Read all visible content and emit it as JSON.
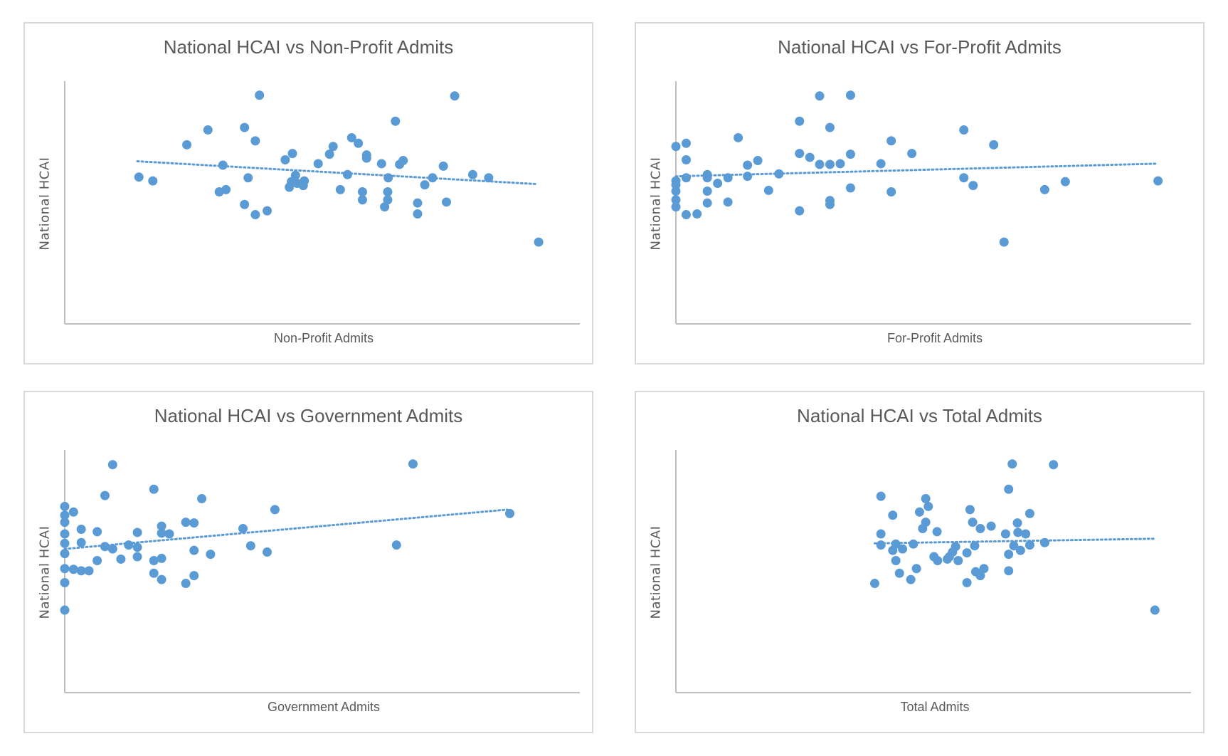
{
  "page": {
    "background": "#ffffff"
  },
  "colors": {
    "marker": "#5b9bd5",
    "trendline": "#5b9bd5",
    "axis": "#bfbfbf",
    "border": "#d9d9d9",
    "text": "#595959"
  },
  "chart_data": [
    {
      "type": "scatter",
      "title": "National HCAI vs Non-Profit Admits",
      "xlabel": "Non-Profit Admits",
      "ylabel": "National HCAI",
      "xlim": [
        0,
        100
      ],
      "ylim": [
        0,
        100
      ],
      "grid": false,
      "legend": "none",
      "note": "No tick labels shown; values in relative axis units (0-100)",
      "points": [
        [
          14.4,
          60.5
        ],
        [
          17.1,
          58.9
        ],
        [
          23.7,
          73.8
        ],
        [
          27.8,
          79.9
        ],
        [
          30.7,
          65.4
        ],
        [
          30.0,
          54.4
        ],
        [
          31.3,
          55.3
        ],
        [
          34.9,
          80.9
        ],
        [
          37.0,
          75.4
        ],
        [
          35.6,
          60.2
        ],
        [
          34.9,
          49.2
        ],
        [
          37.0,
          45.0
        ],
        [
          39.3,
          46.6
        ],
        [
          37.8,
          94.2
        ],
        [
          42.8,
          67.6
        ],
        [
          44.2,
          70.2
        ],
        [
          44.8,
          61.2
        ],
        [
          44.0,
          58.6
        ],
        [
          43.6,
          56.3
        ],
        [
          46.5,
          58.9
        ],
        [
          46.3,
          57.0
        ],
        [
          45.1,
          57.9
        ],
        [
          49.2,
          66.0
        ],
        [
          51.4,
          69.9
        ],
        [
          52.1,
          73.1
        ],
        [
          55.7,
          76.7
        ],
        [
          57.0,
          74.4
        ],
        [
          58.6,
          69.6
        ],
        [
          58.6,
          68.3
        ],
        [
          54.9,
          61.5
        ],
        [
          53.5,
          55.3
        ],
        [
          57.8,
          54.4
        ],
        [
          57.8,
          51.1
        ],
        [
          61.5,
          66.0
        ],
        [
          62.8,
          60.2
        ],
        [
          62.7,
          54.4
        ],
        [
          62.7,
          51.1
        ],
        [
          62.1,
          48.2
        ],
        [
          64.2,
          83.5
        ],
        [
          65.0,
          65.7
        ],
        [
          65.7,
          67.3
        ],
        [
          68.5,
          49.8
        ],
        [
          68.5,
          45.3
        ],
        [
          69.9,
          57.3
        ],
        [
          71.4,
          60.2
        ],
        [
          73.5,
          65.0
        ],
        [
          74.1,
          50.2
        ],
        [
          75.7,
          93.9
        ],
        [
          79.2,
          61.5
        ],
        [
          82.3,
          60.2
        ],
        [
          92.0,
          33.7
        ]
      ],
      "trendline": {
        "style": "dotted",
        "from": [
          14.1,
          67.0
        ],
        "to": [
          91.6,
          57.6
        ]
      }
    },
    {
      "type": "scatter",
      "title": "National HCAI vs For-Profit Admits",
      "xlabel": "For-Profit Admits",
      "ylabel": "National HCAI",
      "xlim": [
        0,
        100
      ],
      "ylim": [
        0,
        100
      ],
      "grid": false,
      "legend": "none",
      "note": "No tick labels shown; values in relative axis units (0-100)",
      "points": [
        [
          0,
          73.1
        ],
        [
          2.0,
          74.4
        ],
        [
          2.0,
          67.6
        ],
        [
          0,
          58.9
        ],
        [
          0,
          57.3
        ],
        [
          0,
          54.7
        ],
        [
          0,
          51.1
        ],
        [
          0,
          48.2
        ],
        [
          2.0,
          60.2
        ],
        [
          2.0,
          45.0
        ],
        [
          4.1,
          45.3
        ],
        [
          6.1,
          61.5
        ],
        [
          6.1,
          60.2
        ],
        [
          6.1,
          54.7
        ],
        [
          6.1,
          49.8
        ],
        [
          8.1,
          57.9
        ],
        [
          10.1,
          60.2
        ],
        [
          10.1,
          50.2
        ],
        [
          12.1,
          76.7
        ],
        [
          13.9,
          65.4
        ],
        [
          13.9,
          60.8
        ],
        [
          15.9,
          67.3
        ],
        [
          18.0,
          55.0
        ],
        [
          20.0,
          61.8
        ],
        [
          24.0,
          83.5
        ],
        [
          24.0,
          70.2
        ],
        [
          24.0,
          46.6
        ],
        [
          26.0,
          68.6
        ],
        [
          27.9,
          93.9
        ],
        [
          27.9,
          65.7
        ],
        [
          29.9,
          80.9
        ],
        [
          29.9,
          65.7
        ],
        [
          29.9,
          50.8
        ],
        [
          29.9,
          49.2
        ],
        [
          31.9,
          66.0
        ],
        [
          33.9,
          94.2
        ],
        [
          33.9,
          69.9
        ],
        [
          33.9,
          56.0
        ],
        [
          39.8,
          66.0
        ],
        [
          41.8,
          75.4
        ],
        [
          41.8,
          54.4
        ],
        [
          45.8,
          70.2
        ],
        [
          55.9,
          79.9
        ],
        [
          55.9,
          60.2
        ],
        [
          57.7,
          57.0
        ],
        [
          61.7,
          73.8
        ],
        [
          63.7,
          33.7
        ],
        [
          71.6,
          55.3
        ],
        [
          75.6,
          58.6
        ],
        [
          93.6,
          58.9
        ]
      ],
      "trendline": {
        "style": "dotted",
        "from": [
          0,
          60.8
        ],
        "to": [
          93.1,
          66.0
        ]
      }
    },
    {
      "type": "scatter",
      "title": "National HCAI vs Government Admits",
      "xlabel": "Government Admits",
      "ylabel": "National HCAI",
      "xlim": [
        0,
        100
      ],
      "ylim": [
        0,
        100
      ],
      "grid": false,
      "legend": "none",
      "note": "No tick labels shown; values in relative axis units (0-100)",
      "points": [
        [
          0,
          76.7
        ],
        [
          0,
          73.1
        ],
        [
          0,
          70.2
        ],
        [
          0,
          65.4
        ],
        [
          0,
          61.5
        ],
        [
          0,
          57.3
        ],
        [
          0,
          51.1
        ],
        [
          0,
          45.3
        ],
        [
          0,
          34.0
        ],
        [
          1.7,
          74.4
        ],
        [
          1.7,
          50.8
        ],
        [
          3.2,
          67.3
        ],
        [
          3.2,
          61.8
        ],
        [
          3.2,
          50.2
        ],
        [
          4.7,
          50.2
        ],
        [
          6.3,
          66.3
        ],
        [
          6.3,
          54.4
        ],
        [
          7.8,
          81.2
        ],
        [
          7.8,
          60.2
        ],
        [
          9.3,
          93.9
        ],
        [
          9.3,
          59.2
        ],
        [
          10.9,
          55.0
        ],
        [
          12.4,
          60.8
        ],
        [
          14.1,
          66.0
        ],
        [
          14.1,
          59.9
        ],
        [
          14.1,
          56.0
        ],
        [
          17.3,
          83.8
        ],
        [
          17.3,
          54.4
        ],
        [
          17.3,
          49.2
        ],
        [
          18.8,
          68.6
        ],
        [
          18.8,
          65.7
        ],
        [
          18.8,
          55.3
        ],
        [
          18.8,
          46.6
        ],
        [
          20.3,
          65.4
        ],
        [
          23.5,
          70.2
        ],
        [
          23.5,
          45.0
        ],
        [
          25.1,
          69.9
        ],
        [
          25.1,
          58.6
        ],
        [
          25.1,
          48.2
        ],
        [
          26.6,
          79.9
        ],
        [
          28.3,
          57.0
        ],
        [
          34.6,
          67.6
        ],
        [
          36.1,
          60.5
        ],
        [
          39.3,
          57.9
        ],
        [
          40.8,
          75.4
        ],
        [
          64.4,
          60.8
        ],
        [
          67.6,
          94.2
        ],
        [
          86.4,
          73.8
        ]
      ],
      "trendline": {
        "style": "dotted",
        "from": [
          0,
          59.2
        ],
        "to": [
          85.9,
          75.4
        ]
      }
    },
    {
      "type": "scatter",
      "title": "National HCAI vs Total Admits",
      "xlabel": "Total Admits",
      "ylabel": "National HCAI",
      "xlim": [
        0,
        100
      ],
      "ylim": [
        0,
        100
      ],
      "grid": false,
      "legend": "none",
      "note": "No tick labels shown; values in relative axis units (0-100)",
      "points": [
        [
          38.6,
          45.0
        ],
        [
          39.8,
          80.9
        ],
        [
          39.8,
          65.4
        ],
        [
          39.8,
          60.8
        ],
        [
          42.1,
          73.1
        ],
        [
          42.1,
          58.6
        ],
        [
          42.7,
          61.2
        ],
        [
          42.7,
          54.4
        ],
        [
          43.4,
          49.2
        ],
        [
          44.0,
          59.2
        ],
        [
          45.6,
          46.6
        ],
        [
          46.1,
          61.2
        ],
        [
          46.7,
          51.1
        ],
        [
          47.3,
          74.4
        ],
        [
          47.9,
          67.6
        ],
        [
          48.5,
          79.9
        ],
        [
          48.5,
          70.2
        ],
        [
          49.0,
          76.7
        ],
        [
          50.1,
          56.0
        ],
        [
          50.7,
          66.3
        ],
        [
          50.8,
          54.4
        ],
        [
          52.7,
          55.0
        ],
        [
          53.1,
          56.0
        ],
        [
          53.7,
          57.9
        ],
        [
          54.3,
          60.2
        ],
        [
          54.8,
          54.4
        ],
        [
          56.5,
          45.3
        ],
        [
          56.5,
          57.6
        ],
        [
          57.1,
          75.4
        ],
        [
          57.6,
          70.2
        ],
        [
          58.0,
          60.5
        ],
        [
          58.2,
          49.8
        ],
        [
          59.1,
          67.6
        ],
        [
          59.1,
          48.2
        ],
        [
          59.8,
          51.1
        ],
        [
          61.2,
          68.6
        ],
        [
          64.0,
          65.4
        ],
        [
          64.6,
          83.8
        ],
        [
          64.6,
          57.0
        ],
        [
          64.6,
          50.2
        ],
        [
          65.3,
          94.2
        ],
        [
          65.6,
          60.5
        ],
        [
          66.3,
          69.9
        ],
        [
          66.4,
          66.0
        ],
        [
          66.9,
          58.6
        ],
        [
          67.9,
          65.4
        ],
        [
          68.7,
          73.8
        ],
        [
          68.7,
          60.8
        ],
        [
          71.6,
          61.8
        ],
        [
          73.3,
          93.9
        ],
        [
          93.0,
          34.0
        ]
      ],
      "trendline": {
        "style": "dotted",
        "from": [
          38.6,
          61.5
        ],
        "to": [
          92.7,
          63.4
        ]
      }
    }
  ]
}
